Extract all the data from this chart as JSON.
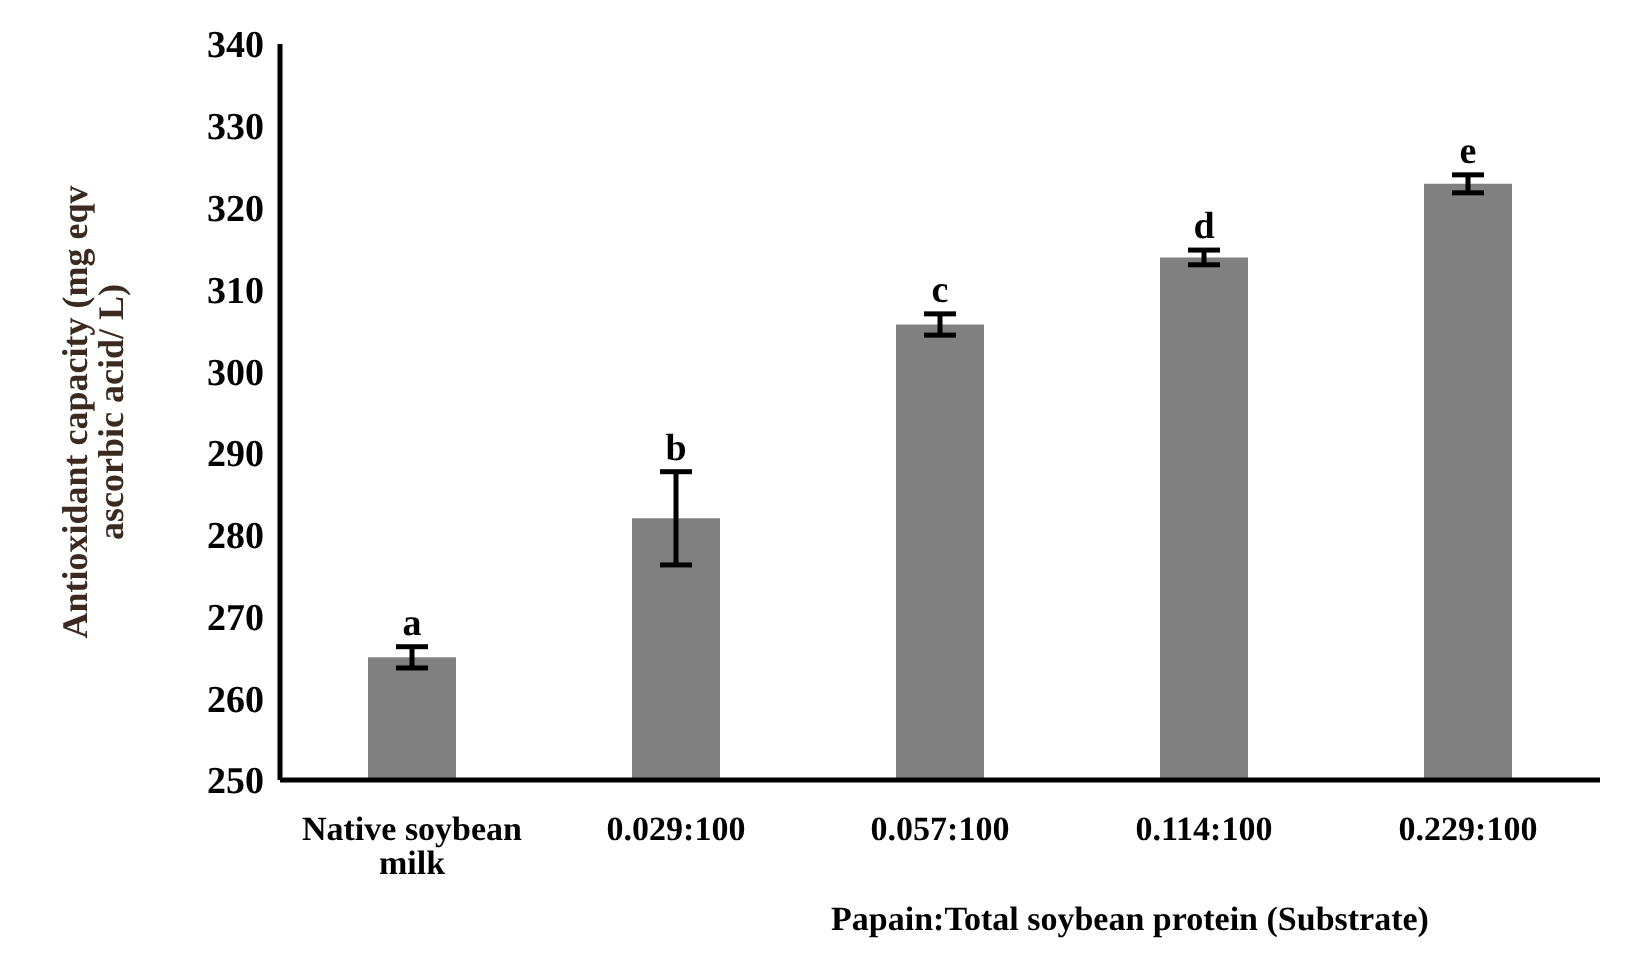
{
  "chart_data": {
    "type": "bar",
    "xlabel": "Papain:Total soybean protein (Substrate)",
    "ylabel": "Antioxidant capacity (mg eqv ascorbic acid/ L)",
    "categories": [
      "Native soybean milk",
      "0.029:100",
      "0.057:100",
      "0.114:100",
      "0.229:100"
    ],
    "values": [
      265,
      282,
      305.7,
      313.9,
      322.9
    ],
    "errors": [
      1.3,
      5.7,
      1.3,
      0.9,
      1.1
    ],
    "color": "#808080",
    "ylim": [
      250,
      340
    ],
    "yticks": [
      250,
      260,
      270,
      280,
      290,
      300,
      310,
      320,
      330,
      340
    ],
    "grid": false,
    "legend": false,
    "annotations": [
      {
        "text": "a",
        "x": "Native soybean milk",
        "y": 266.3
      },
      {
        "text": "b",
        "x": "0.029:100",
        "y": 287.7
      },
      {
        "text": "c",
        "x": "0.057:100",
        "y": 307
      },
      {
        "text": "d",
        "x": "0.114:100",
        "y": 314.8
      },
      {
        "text": "e",
        "x": "0.229:100",
        "y": 324
      }
    ]
  }
}
